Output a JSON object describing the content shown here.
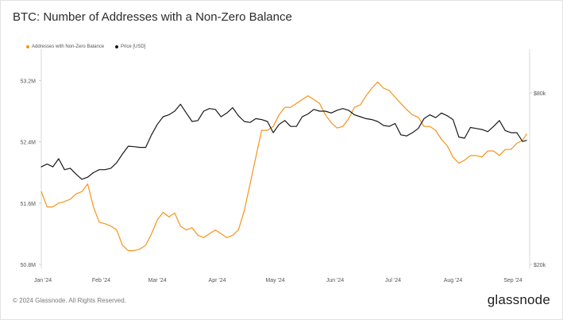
{
  "header": {
    "title": "BTC: Number of Addresses with a Non-Zero Balance"
  },
  "footer": {
    "copyright": "© 2024 Glassnode. All Rights Reserved.",
    "brand": "glassnode"
  },
  "chart_data": {
    "type": "line",
    "grid": false,
    "legend_position": "top-left",
    "x_labels": [
      "Jan '24",
      "Feb '24",
      "Mar '24",
      "Apr '24",
      "May '24",
      "Jun '24",
      "Jul '24",
      "Aug '24",
      "Sep '24"
    ],
    "x_domain": [
      "2024-01-01",
      "2024-09-08"
    ],
    "left_axis": {
      "ticks": [
        "50.8M",
        "51.6M",
        "52.4M",
        "53.2M"
      ],
      "tick_values": [
        50.8,
        51.6,
        52.4,
        53.2
      ],
      "range": [
        50.8,
        53.4
      ],
      "unit": "M"
    },
    "right_axis": {
      "ticks": [
        "$20k",
        "$80k"
      ],
      "tick_values": [
        20000,
        80000
      ],
      "scale": "log",
      "range": [
        20000,
        100000
      ]
    },
    "series": [
      {
        "name": "Addresses with Non-Zero Balance",
        "color": "#f7931a",
        "axis": "left",
        "x": [
          "2024-01-01",
          "2024-01-04",
          "2024-01-07",
          "2024-01-10",
          "2024-01-13",
          "2024-01-16",
          "2024-01-19",
          "2024-01-22",
          "2024-01-25",
          "2024-01-28",
          "2024-01-31",
          "2024-02-03",
          "2024-02-06",
          "2024-02-09",
          "2024-02-12",
          "2024-02-15",
          "2024-02-18",
          "2024-02-21",
          "2024-02-24",
          "2024-02-27",
          "2024-03-01",
          "2024-03-04",
          "2024-03-07",
          "2024-03-10",
          "2024-03-13",
          "2024-03-16",
          "2024-03-19",
          "2024-03-22",
          "2024-03-25",
          "2024-03-28",
          "2024-03-31",
          "2024-04-03",
          "2024-04-06",
          "2024-04-09",
          "2024-04-12",
          "2024-04-15",
          "2024-04-18",
          "2024-04-21",
          "2024-04-24",
          "2024-04-27",
          "2024-04-30",
          "2024-05-03",
          "2024-05-06",
          "2024-05-09",
          "2024-05-12",
          "2024-05-15",
          "2024-05-18",
          "2024-05-21",
          "2024-05-24",
          "2024-05-27",
          "2024-05-30",
          "2024-06-02",
          "2024-06-05",
          "2024-06-08",
          "2024-06-11",
          "2024-06-14",
          "2024-06-17",
          "2024-06-20",
          "2024-06-23",
          "2024-06-26",
          "2024-06-29",
          "2024-07-02",
          "2024-07-05",
          "2024-07-08",
          "2024-07-11",
          "2024-07-14",
          "2024-07-17",
          "2024-07-20",
          "2024-07-23",
          "2024-07-26",
          "2024-07-29",
          "2024-08-01",
          "2024-08-04",
          "2024-08-07",
          "2024-08-10",
          "2024-08-13",
          "2024-08-16",
          "2024-08-19",
          "2024-08-22",
          "2024-08-25",
          "2024-08-28",
          "2024-08-31",
          "2024-09-03",
          "2024-09-06",
          "2024-09-08"
        ],
        "values": [
          51.75,
          51.55,
          51.55,
          51.6,
          51.62,
          51.65,
          51.72,
          51.75,
          51.85,
          51.55,
          51.35,
          51.33,
          51.3,
          51.25,
          51.05,
          50.98,
          50.98,
          51.0,
          51.05,
          51.2,
          51.38,
          51.48,
          51.42,
          51.47,
          51.3,
          51.25,
          51.28,
          51.18,
          51.15,
          51.2,
          51.25,
          51.2,
          51.15,
          51.18,
          51.25,
          51.5,
          51.85,
          52.2,
          52.55,
          52.55,
          52.6,
          52.75,
          52.85,
          52.85,
          52.9,
          52.95,
          53.0,
          52.95,
          52.9,
          52.75,
          52.65,
          52.58,
          52.6,
          52.7,
          52.85,
          52.88,
          53.0,
          53.1,
          53.18,
          53.1,
          53.07,
          52.98,
          52.9,
          52.82,
          52.75,
          52.72,
          52.6,
          52.6,
          52.55,
          52.43,
          52.35,
          52.2,
          52.12,
          52.16,
          52.22,
          52.22,
          52.2,
          52.28,
          52.28,
          52.22,
          52.3,
          52.3,
          52.38,
          52.42,
          52.5
        ],
        "highlight_marker_note": ""
      },
      {
        "name": "Price [USD]",
        "color": "#1a1a1a",
        "axis": "right",
        "x": [
          "2024-01-01",
          "2024-01-04",
          "2024-01-07",
          "2024-01-10",
          "2024-01-13",
          "2024-01-16",
          "2024-01-19",
          "2024-01-22",
          "2024-01-25",
          "2024-01-28",
          "2024-01-31",
          "2024-02-03",
          "2024-02-06",
          "2024-02-09",
          "2024-02-12",
          "2024-02-15",
          "2024-02-18",
          "2024-02-21",
          "2024-02-24",
          "2024-02-27",
          "2024-03-01",
          "2024-03-04",
          "2024-03-07",
          "2024-03-10",
          "2024-03-13",
          "2024-03-16",
          "2024-03-19",
          "2024-03-22",
          "2024-03-25",
          "2024-03-28",
          "2024-03-31",
          "2024-04-03",
          "2024-04-06",
          "2024-04-09",
          "2024-04-12",
          "2024-04-15",
          "2024-04-18",
          "2024-04-21",
          "2024-04-24",
          "2024-04-27",
          "2024-04-30",
          "2024-05-03",
          "2024-05-06",
          "2024-05-09",
          "2024-05-12",
          "2024-05-15",
          "2024-05-18",
          "2024-05-21",
          "2024-05-24",
          "2024-05-27",
          "2024-05-30",
          "2024-06-02",
          "2024-06-05",
          "2024-06-08",
          "2024-06-11",
          "2024-06-14",
          "2024-06-17",
          "2024-06-20",
          "2024-06-23",
          "2024-06-26",
          "2024-06-29",
          "2024-07-02",
          "2024-07-05",
          "2024-07-08",
          "2024-07-11",
          "2024-07-14",
          "2024-07-17",
          "2024-07-20",
          "2024-07-23",
          "2024-07-26",
          "2024-07-29",
          "2024-08-01",
          "2024-08-04",
          "2024-08-07",
          "2024-08-10",
          "2024-08-13",
          "2024-08-16",
          "2024-08-19",
          "2024-08-22",
          "2024-08-25",
          "2024-08-28",
          "2024-08-31",
          "2024-09-03",
          "2024-09-06",
          "2024-09-08"
        ],
        "values": [
          44000,
          45000,
          44000,
          47000,
          43000,
          43500,
          41500,
          39800,
          40500,
          42000,
          43000,
          43000,
          43500,
          45500,
          48800,
          52000,
          51800,
          51500,
          51500,
          57000,
          62000,
          66000,
          67000,
          69000,
          73000,
          68000,
          63500,
          64000,
          69000,
          70500,
          70000,
          66000,
          68000,
          71000,
          66500,
          63500,
          63000,
          65000,
          64500,
          63500,
          58000,
          62000,
          64000,
          61000,
          61000,
          66000,
          67500,
          70000,
          69000,
          69000,
          68000,
          69500,
          70500,
          69500,
          67000,
          66000,
          65000,
          64500,
          63500,
          61500,
          61000,
          62500,
          57000,
          56500,
          58000,
          60000,
          65000,
          67000,
          65500,
          68000,
          66500,
          64500,
          56000,
          55500,
          60500,
          60000,
          59500,
          58500,
          61000,
          64000,
          59000,
          58000,
          58000,
          54000,
          54500
        ]
      }
    ]
  }
}
